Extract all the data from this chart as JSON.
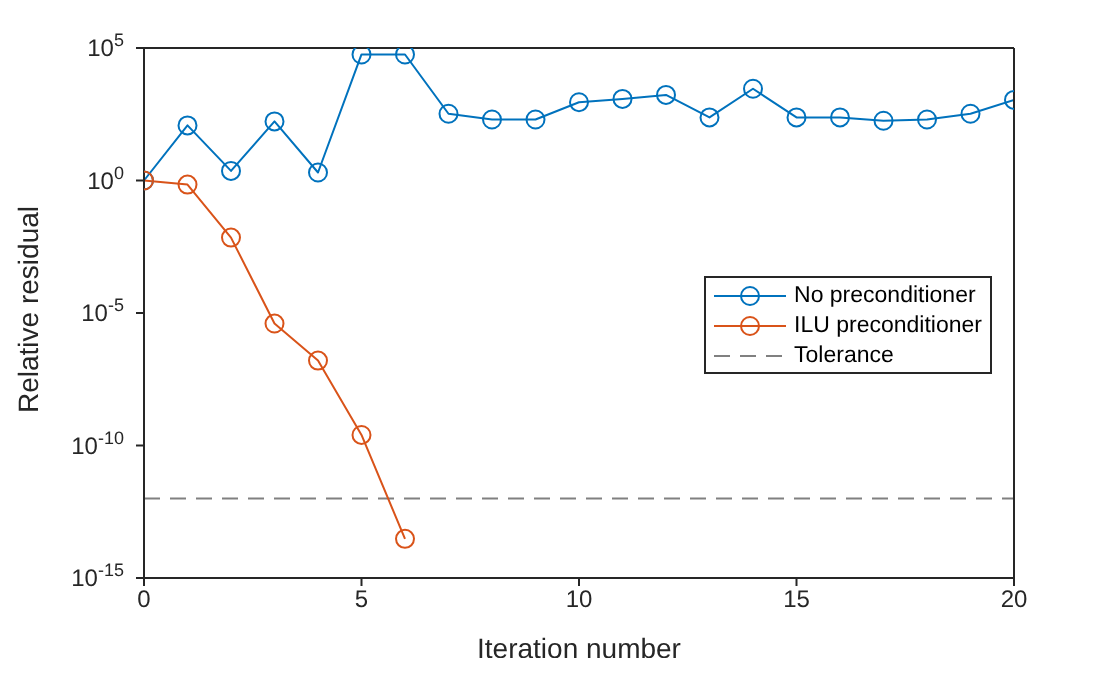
{
  "chart_data": {
    "type": "line",
    "xlabel": "Iteration number",
    "ylabel": "Relative residual",
    "log": "y",
    "x": [
      0,
      1,
      2,
      3,
      4,
      5,
      6,
      7,
      8,
      9,
      10,
      11,
      12,
      13,
      14,
      15,
      16,
      17,
      18,
      19,
      20
    ],
    "xlim": [
      0,
      20
    ],
    "xticks": [
      0,
      5,
      10,
      15,
      20
    ],
    "ylim": [
      1e-15,
      100000
    ],
    "yticks": [
      {
        "value": 1e-15,
        "label": "10$^{-15}$"
      },
      {
        "value": 1e-10,
        "label": "10$^{-10}$"
      },
      {
        "value": 1e-05,
        "label": "10$^{-5}$"
      },
      {
        "value": 1,
        "label": "10$^{0}$"
      },
      {
        "value": 100000,
        "label": "10$^{5}$"
      }
    ],
    "series": [
      {
        "name": "No preconditioner",
        "color": "#0072bd",
        "values": [
          1,
          120,
          2.3,
          170,
          2,
          57000,
          57000,
          330,
          200,
          200,
          900,
          1200,
          1700,
          240,
          2900,
          240,
          240,
          180,
          200,
          330,
          1100
        ]
      },
      {
        "name": "ILU preconditioner",
        "color": "#d95319",
        "values": [
          1,
          0.7,
          0.007,
          4e-06,
          1.6e-07,
          2.5e-10,
          3e-14,
          null,
          null,
          null,
          null,
          null,
          null,
          null,
          null,
          null,
          null,
          null,
          null,
          null,
          null
        ]
      }
    ],
    "ref_lines": [
      {
        "axis": "y",
        "value": 1e-12,
        "label": "Tolerance",
        "color": "#808080",
        "line_style": "dashed"
      }
    ],
    "marker": "circle",
    "line_style": "solid",
    "grid": false,
    "legend": "right"
  }
}
